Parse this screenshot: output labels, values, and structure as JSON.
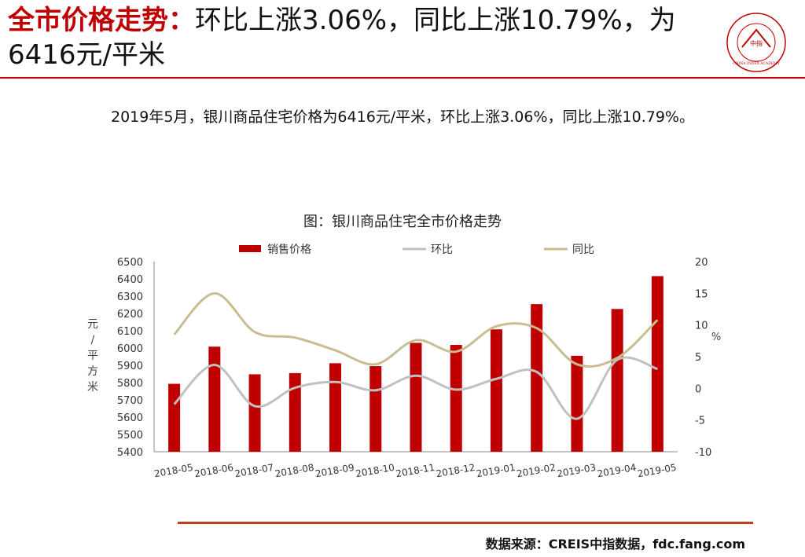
{
  "slide": {
    "title_highlight": "全市价格走势：",
    "title_rest": "环比上涨3.06%，同比上涨10.79%，为6416元/平米",
    "summary": "2019年5月，银川商品住宅价格为6416元/平米，环比上涨3.06%，同比上涨10.79%。",
    "source": "数据来源：CREIS中指数据，fdc.fang.com",
    "logo_center_text": "中指",
    "logo_ring_text": "CHINA INDEX ACADEMY"
  },
  "colors": {
    "accent": "#c00000",
    "bar": "#c00000",
    "mom_line": "#c0c0c0",
    "yoy_line": "#c9bd8f",
    "footer_rule": "#c0401c"
  },
  "chart_data": {
    "type": "bar",
    "title": "图：银川商品住宅全市价格走势",
    "ylabel": "元/平方米",
    "y2label": "%",
    "categories": [
      "2018-05",
      "2018-06",
      "2018-07",
      "2018-08",
      "2018-09",
      "2018-10",
      "2018-11",
      "2018-12",
      "2019-01",
      "2019-02",
      "2019-03",
      "2019-04",
      "2019-05"
    ],
    "ylim": [
      5400,
      6500
    ],
    "y_ticks": [
      5400,
      5500,
      5600,
      5700,
      5800,
      5900,
      6000,
      6100,
      6200,
      6300,
      6400,
      6500
    ],
    "y2lim": [
      -10,
      20
    ],
    "y2_ticks": [
      -10,
      -5,
      0,
      5,
      10,
      15,
      20
    ],
    "legend_position": "top",
    "series": [
      {
        "name": "销售价格",
        "type": "bar",
        "axis": "left",
        "values": [
          5793,
          6008,
          5848,
          5855,
          5912,
          5895,
          6030,
          6018,
          6108,
          6254,
          5955,
          6226,
          6416
        ]
      },
      {
        "name": "环比",
        "type": "line",
        "axis": "right",
        "values": [
          -2.5,
          3.7,
          -2.8,
          0.1,
          1.0,
          -0.3,
          2.0,
          -0.2,
          1.5,
          2.6,
          -4.8,
          4.5,
          3.06
        ]
      },
      {
        "name": "同比",
        "type": "line",
        "axis": "right",
        "values": [
          8.5,
          15.0,
          8.9,
          8.0,
          6.0,
          3.8,
          7.6,
          5.8,
          9.8,
          9.5,
          3.8,
          4.8,
          10.79
        ]
      }
    ]
  }
}
